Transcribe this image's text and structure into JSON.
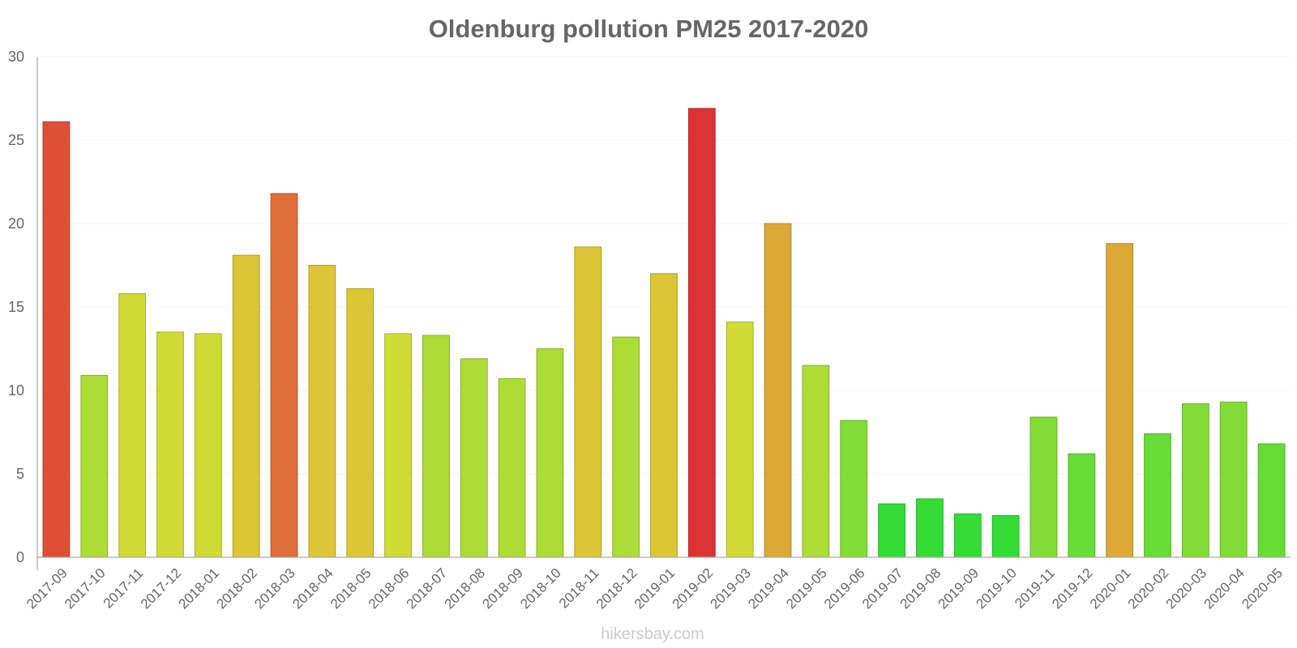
{
  "chart_data": {
    "type": "bar",
    "title": "Oldenburg pollution PM25 2017-2020",
    "xlabel": "",
    "ylabel": "",
    "ylim": [
      0,
      30
    ],
    "yticks": [
      0,
      5,
      10,
      15,
      20,
      25,
      30
    ],
    "grid": true,
    "legend": "none",
    "categories": [
      "2017-09",
      "2017-10",
      "2017-11",
      "2017-12",
      "2018-01",
      "2018-02",
      "2018-03",
      "2018-04",
      "2018-05",
      "2018-06",
      "2018-07",
      "2018-08",
      "2018-09",
      "2018-10",
      "2018-11",
      "2018-12",
      "2019-01",
      "2019-02",
      "2019-03",
      "2019-04",
      "2019-05",
      "2019-06",
      "2019-07",
      "2019-08",
      "2019-09",
      "2019-10",
      "2019-11",
      "2019-12",
      "2020-01",
      "2020-02",
      "2020-03",
      "2020-04",
      "2020-05"
    ],
    "values": [
      26.1,
      10.9,
      15.8,
      13.5,
      13.4,
      18.1,
      21.8,
      17.5,
      16.1,
      13.4,
      13.3,
      11.9,
      10.7,
      12.5,
      18.6,
      13.2,
      17.0,
      26.9,
      14.1,
      20.0,
      11.5,
      8.2,
      3.2,
      3.5,
      2.6,
      2.5,
      8.4,
      6.2,
      18.8,
      7.4,
      9.2,
      9.3,
      6.8
    ],
    "colors": [
      "#de5035",
      "#acdc36",
      "#cfdc36",
      "#cfdc36",
      "#cfdc36",
      "#dcc636",
      "#de6f36",
      "#dcc636",
      "#dcc636",
      "#cfdc36",
      "#acdc36",
      "#acdc36",
      "#acdc36",
      "#acdc36",
      "#dcc636",
      "#acdc36",
      "#dcc636",
      "#dc3434",
      "#cfdc36",
      "#dca836",
      "#acdc36",
      "#82dc36",
      "#34dc36",
      "#34dc36",
      "#34dc36",
      "#34dc36",
      "#82dc36",
      "#67dc36",
      "#dca836",
      "#67dc36",
      "#82dc36",
      "#82dc36",
      "#67dc36"
    ]
  },
  "watermark": "hikersbay.com"
}
